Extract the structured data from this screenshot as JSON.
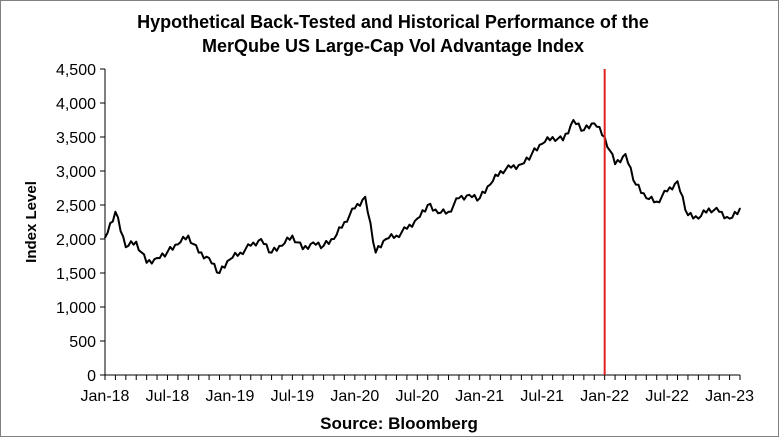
{
  "chart_data": {
    "type": "line",
    "title_line1": "Hypothetical Back-Tested and Historical Performance of the",
    "title_line2": "MerQube US Large-Cap Vol Advantage Index",
    "ylabel": "Index Level",
    "xlabel": "Source: Bloomberg",
    "ylim": [
      0,
      4500
    ],
    "y_ticks": [
      0,
      500,
      1000,
      1500,
      2000,
      2500,
      3000,
      3500,
      4000,
      4500
    ],
    "y_tick_labels": [
      "0",
      "500",
      "1,000",
      "1,500",
      "2,000",
      "2,500",
      "3,000",
      "3,500",
      "4,000",
      "4,500"
    ],
    "x_tick_labels": [
      "Jan-18",
      "Jul-18",
      "Jan-19",
      "Jul-19",
      "Jan-20",
      "Jul-20",
      "Jan-21",
      "Jul-21",
      "Jan-22",
      "Jul-22",
      "Jan-23"
    ],
    "x_tick_dates": [
      "2018-01",
      "2018-07",
      "2019-01",
      "2019-07",
      "2020-01",
      "2020-07",
      "2021-01",
      "2021-07",
      "2022-01",
      "2022-07",
      "2023-01"
    ],
    "xlim": [
      "2018-01",
      "2023-02"
    ],
    "grid": false,
    "legend": "none",
    "marker_date": "2022-01",
    "colors": {
      "series": "#000000",
      "marker_line": "#e02020",
      "frame": "#808080"
    },
    "series": [
      {
        "x": [
          "2018-01",
          "2018-02",
          "2018-03",
          "2018-04",
          "2018-05",
          "2018-06",
          "2018-07",
          "2018-08",
          "2018-09",
          "2018-10",
          "2018-11",
          "2018-12",
          "2019-01",
          "2019-02",
          "2019-03",
          "2019-04",
          "2019-05",
          "2019-06",
          "2019-07",
          "2019-08",
          "2019-09",
          "2019-10",
          "2019-11",
          "2019-12",
          "2020-01",
          "2020-02",
          "2020-03",
          "2020-04",
          "2020-05",
          "2020-06",
          "2020-07",
          "2020-08",
          "2020-09",
          "2020-10",
          "2020-11",
          "2020-12",
          "2021-01",
          "2021-02",
          "2021-03",
          "2021-04",
          "2021-05",
          "2021-06",
          "2021-07",
          "2021-08",
          "2021-09",
          "2021-10",
          "2021-11",
          "2021-12",
          "2022-01",
          "2022-02",
          "2022-03",
          "2022-04",
          "2022-05",
          "2022-06",
          "2022-07",
          "2022-08",
          "2022-09",
          "2022-10",
          "2022-11",
          "2022-12",
          "2023-01",
          "2023-02"
        ],
        "values": [
          2020,
          2400,
          1880,
          1960,
          1650,
          1720,
          1810,
          1920,
          2050,
          1800,
          1720,
          1500,
          1700,
          1800,
          1900,
          2000,
          1800,
          1900,
          2050,
          1850,
          1950,
          1900,
          2000,
          2250,
          2450,
          2620,
          1800,
          2000,
          2050,
          2150,
          2300,
          2500,
          2380,
          2400,
          2600,
          2650,
          2600,
          2800,
          3000,
          3050,
          3100,
          3250,
          3400,
          3500,
          3450,
          3750,
          3600,
          3700,
          3500,
          3100,
          3250,
          2800,
          2600,
          2550,
          2700,
          2850,
          2350,
          2300,
          2450,
          2400,
          2300,
          2450
        ]
      }
    ]
  }
}
